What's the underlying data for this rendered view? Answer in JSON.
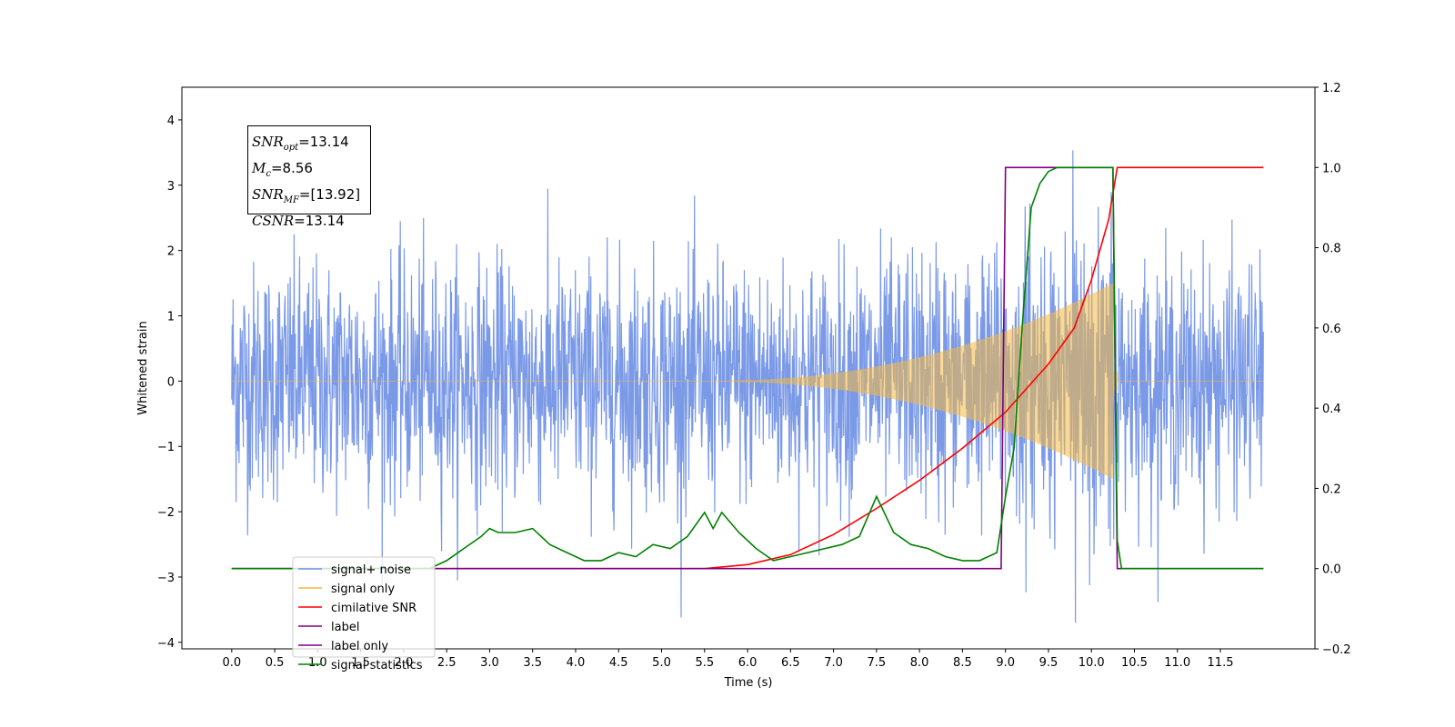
{
  "chart_data": {
    "type": "line",
    "xlabel": "Time (s)",
    "ylabel": "Whitened strain",
    "x_ticks": [
      "0.0",
      "0.5",
      "1.0",
      "1.5",
      "2.0",
      "2.5",
      "3.0",
      "3.5",
      "4.0",
      "4.5",
      "5.0",
      "5.5",
      "6.0",
      "6.5",
      "7.0",
      "7.5",
      "8.0",
      "8.5",
      "9.0",
      "9.5",
      "10.0",
      "10.5",
      "11.0",
      "11.5"
    ],
    "y_ticks": [
      "−4",
      "−3",
      "−2",
      "−1",
      "0",
      "1",
      "2",
      "3",
      "4"
    ],
    "y2_ticks": [
      "−0.2",
      "0.0",
      "0.2",
      "0.4",
      "0.6",
      "0.8",
      "1.0",
      "1.2"
    ],
    "xlim": [
      -0.58,
      12.6
    ],
    "ylim": [
      -4.1,
      4.5
    ],
    "y2lim": [
      -0.2,
      1.2
    ],
    "series": [
      {
        "name": "signal+ noise",
        "color": "#7393e6",
        "axis": "left",
        "noise_sigma": 0.9,
        "clip": [
          -3.7,
          4.1
        ],
        "x_range": [
          0,
          12
        ]
      },
      {
        "name": "signal only",
        "color": "#f5b942",
        "axis": "left",
        "chirp_start": 5.5,
        "chirp_end": 10.25,
        "peak_amplitude": 1.0,
        "x_range": [
          0,
          12
        ]
      },
      {
        "name": "cimilative SNR",
        "color": "#ff0000",
        "axis": "right",
        "x": [
          0,
          5.5,
          6.0,
          6.5,
          7.0,
          7.5,
          8.0,
          8.5,
          9.0,
          9.5,
          9.8,
          10.0,
          10.2,
          10.3,
          12.0
        ],
        "y": [
          0,
          0,
          0.01,
          0.035,
          0.085,
          0.15,
          0.22,
          0.3,
          0.39,
          0.51,
          0.6,
          0.72,
          0.87,
          1.0,
          1.0
        ]
      },
      {
        "name": "label",
        "color": "#800080",
        "axis": "right",
        "x": [
          0,
          8.95,
          9.0,
          10.25,
          10.3,
          12.0
        ],
        "y": [
          0,
          0,
          1.0,
          1.0,
          0,
          0
        ]
      },
      {
        "name": "label only",
        "color": "#800080",
        "axis": "right",
        "hidden": true
      },
      {
        "name": "signal statistics",
        "color": "#008000",
        "axis": "right",
        "x": [
          0,
          2.3,
          2.5,
          2.7,
          2.9,
          3.0,
          3.1,
          3.3,
          3.5,
          3.7,
          3.9,
          4.1,
          4.3,
          4.5,
          4.7,
          4.9,
          5.1,
          5.3,
          5.5,
          5.6,
          5.7,
          5.9,
          6.1,
          6.3,
          6.5,
          6.7,
          6.9,
          7.1,
          7.3,
          7.5,
          7.7,
          7.9,
          8.1,
          8.3,
          8.5,
          8.7,
          8.9,
          9.0,
          9.1,
          9.2,
          9.3,
          9.4,
          9.5,
          9.6,
          9.8,
          10.0,
          10.25,
          10.3,
          10.35,
          12.0
        ],
        "y": [
          0,
          0,
          0.02,
          0.05,
          0.08,
          0.1,
          0.09,
          0.09,
          0.1,
          0.06,
          0.04,
          0.02,
          0.02,
          0.04,
          0.03,
          0.06,
          0.05,
          0.08,
          0.14,
          0.1,
          0.14,
          0.09,
          0.05,
          0.02,
          0.03,
          0.04,
          0.05,
          0.06,
          0.08,
          0.18,
          0.09,
          0.06,
          0.05,
          0.03,
          0.02,
          0.02,
          0.04,
          0.18,
          0.3,
          0.62,
          0.9,
          0.96,
          0.99,
          1.0,
          1.0,
          1.0,
          1.0,
          0.07,
          0,
          0
        ]
      }
    ]
  },
  "legend": [
    {
      "label": "signal+ noise",
      "color": "#7393e6"
    },
    {
      "label": "signal only",
      "color": "#f5b942"
    },
    {
      "label": "cimilative SNR",
      "color": "#ff0000"
    },
    {
      "label": "label",
      "color": "#800080"
    },
    {
      "label": "label only",
      "color": "#800080"
    },
    {
      "label": "signal statistics",
      "color": "#008000"
    }
  ],
  "annotation": {
    "snr_opt_value": "=13.14",
    "mc_value": "=8.56",
    "snr_mf_value": "=[13.92]",
    "csnr_value": "=13.14"
  }
}
